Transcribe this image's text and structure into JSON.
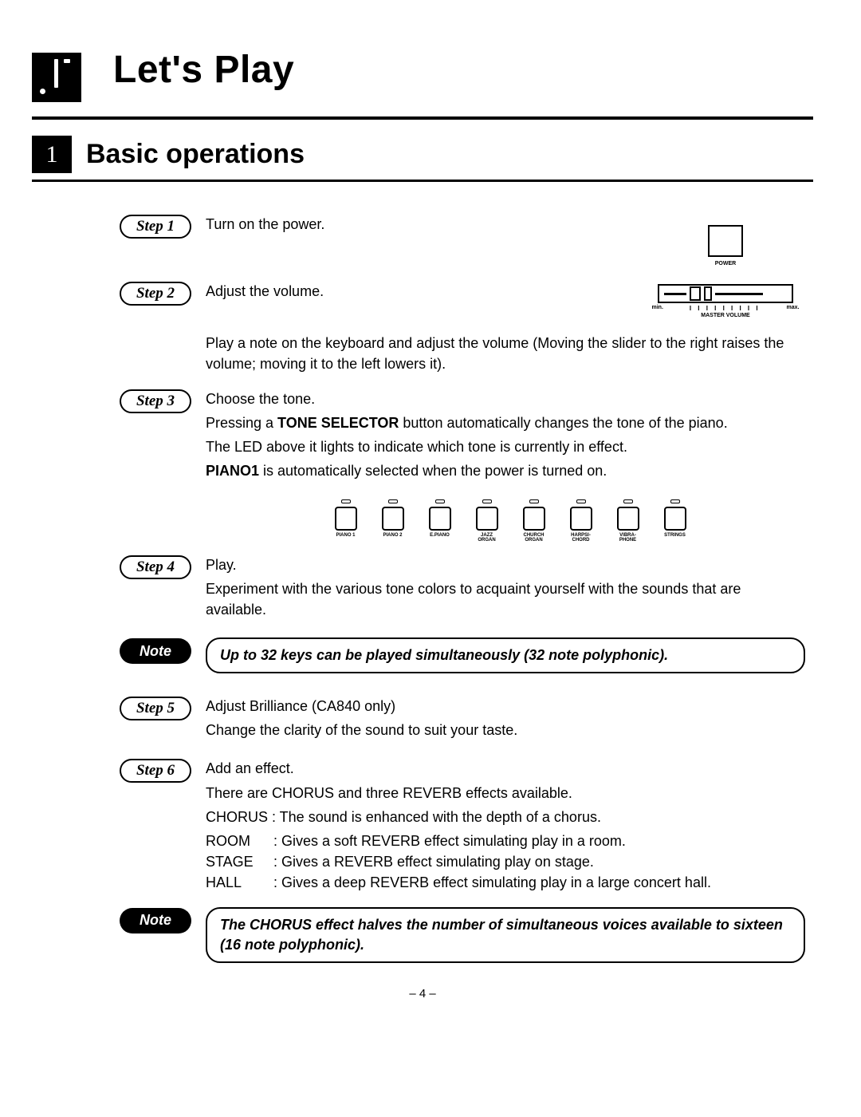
{
  "chapter": {
    "title": "Let's Play"
  },
  "section": {
    "number": "1",
    "title": "Basic operations"
  },
  "steps": [
    {
      "label": "Step 1",
      "title": "Turn on the power."
    },
    {
      "label": "Step 2",
      "title": "Adjust the volume.",
      "after": "Play a note on the keyboard and adjust the volume (Moving the slider to the right raises the volume; moving it to the left lowers it)."
    },
    {
      "label": "Step 3",
      "title": "Choose the tone.",
      "lines": [
        "Pressing a <b>TONE SELECTOR</b> button automatically changes the tone of the piano.",
        "The LED above it lights to indicate which tone is currently in effect.",
        "<b>PIANO1</b> is automatically selected when the power is turned on."
      ]
    },
    {
      "label": "Step 4",
      "title": "Play.",
      "lines": [
        "Experiment with the various tone colors to acquaint yourself with the sounds that are available."
      ]
    },
    {
      "label": "Step 5",
      "title": "Adjust Brilliance (CA840 only)",
      "lines": [
        "Change the clarity of the sound to suit your taste."
      ]
    },
    {
      "label": "Step 6",
      "title": "Add an effect.",
      "lines": [
        "There are CHORUS and three REVERB effects available.",
        "CHORUS : The sound is enhanced with the depth of a chorus."
      ]
    }
  ],
  "effects": [
    {
      "name": "ROOM",
      "desc": ": Gives a soft REVERB effect simulating play in a room."
    },
    {
      "name": "STAGE",
      "desc": ": Gives a REVERB effect simulating play on stage."
    },
    {
      "name": "HALL",
      "desc": ": Gives a deep REVERB effect simulating play in a large concert hall."
    }
  ],
  "notes": [
    {
      "label": "Note",
      "text": "Up to 32 keys can be played simultaneously (32 note polyphonic)."
    },
    {
      "label": "Note",
      "text": "The CHORUS effect halves the number of simultaneous voices available to sixteen (16 note polyphonic)."
    }
  ],
  "graphics": {
    "power_label": "POWER",
    "volume": {
      "min": "min.",
      "max": "max.",
      "caption": "MASTER VOLUME"
    },
    "tone_buttons": [
      "PIANO 1",
      "PIANO 2",
      "E.PIANO",
      "JAZZ\nORGAN",
      "CHURCH\nORGAN",
      "HARPSI-\nCHORD",
      "VIBRA-\nPHONE",
      "STRINGS"
    ]
  },
  "page_number": "– 4 –"
}
